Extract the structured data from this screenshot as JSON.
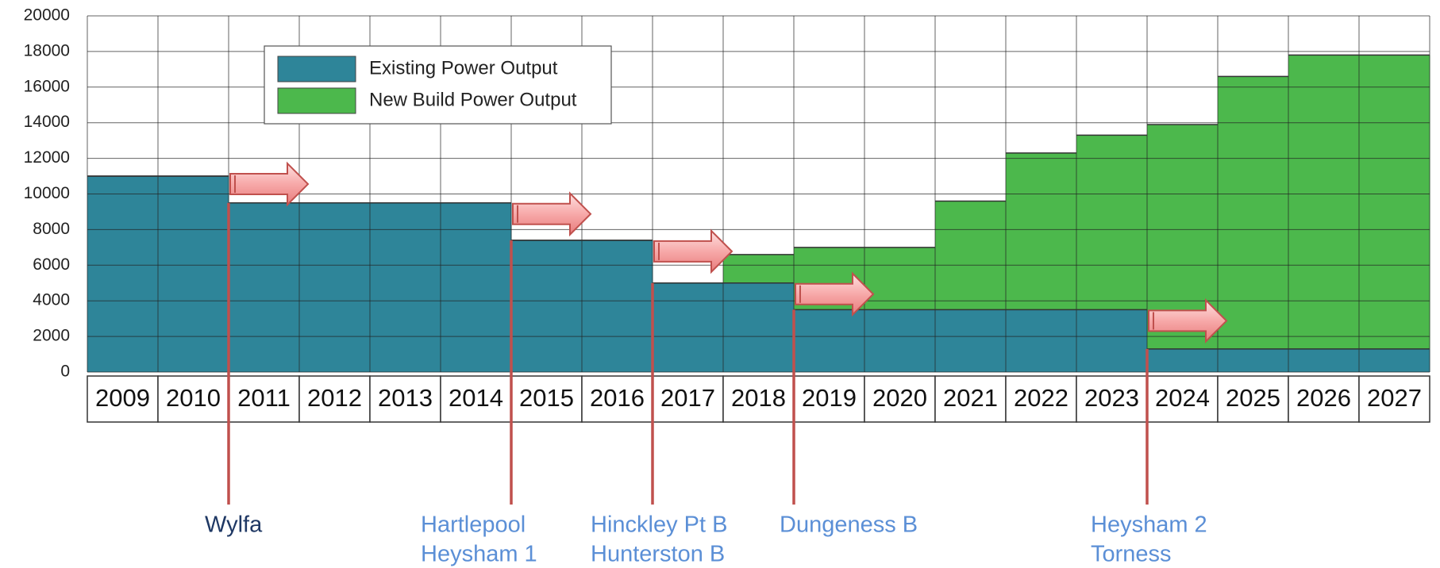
{
  "chart_data": {
    "type": "step-area",
    "categories": [
      "2009",
      "2010",
      "2011",
      "2012",
      "2013",
      "2014",
      "2015",
      "2016",
      "2017",
      "2018",
      "2019",
      "2020",
      "2021",
      "2022",
      "2023",
      "2024",
      "2025",
      "2026",
      "2027"
    ],
    "series": [
      {
        "name": "Existing Power Output",
        "color": "#2e8599",
        "values": [
          11000,
          11000,
          9500,
          9500,
          9500,
          9500,
          7400,
          7400,
          5000,
          5000,
          3500,
          3500,
          3500,
          3500,
          3500,
          1300,
          1300,
          1300,
          1300
        ]
      },
      {
        "name": "New Build Power Output",
        "color": "#4cb84c",
        "values": [
          0,
          0,
          0,
          0,
          0,
          0,
          0,
          0,
          0,
          1600,
          3500,
          3500,
          6100,
          8800,
          9800,
          12600,
          15300,
          16500,
          16500
        ]
      }
    ],
    "ylim": [
      0,
      20000
    ],
    "yticks": [
      0,
      2000,
      4000,
      6000,
      8000,
      10000,
      12000,
      14000,
      16000,
      18000,
      20000
    ],
    "grid": true,
    "annotations": [
      {
        "lines": [
          "Wylfa"
        ],
        "color": "#1f3864"
      },
      {
        "lines": [
          "Hartlepool",
          "Heysham 1"
        ],
        "color": "#5b8fd6"
      },
      {
        "lines": [
          "Hinckley Pt B",
          "Hunterston B"
        ],
        "color": "#5b8fd6"
      },
      {
        "lines": [
          "Dungeness B"
        ],
        "color": "#5b8fd6"
      },
      {
        "lines": [
          "Heysham 2",
          "Torness"
        ],
        "color": "#5b8fd6"
      }
    ]
  }
}
